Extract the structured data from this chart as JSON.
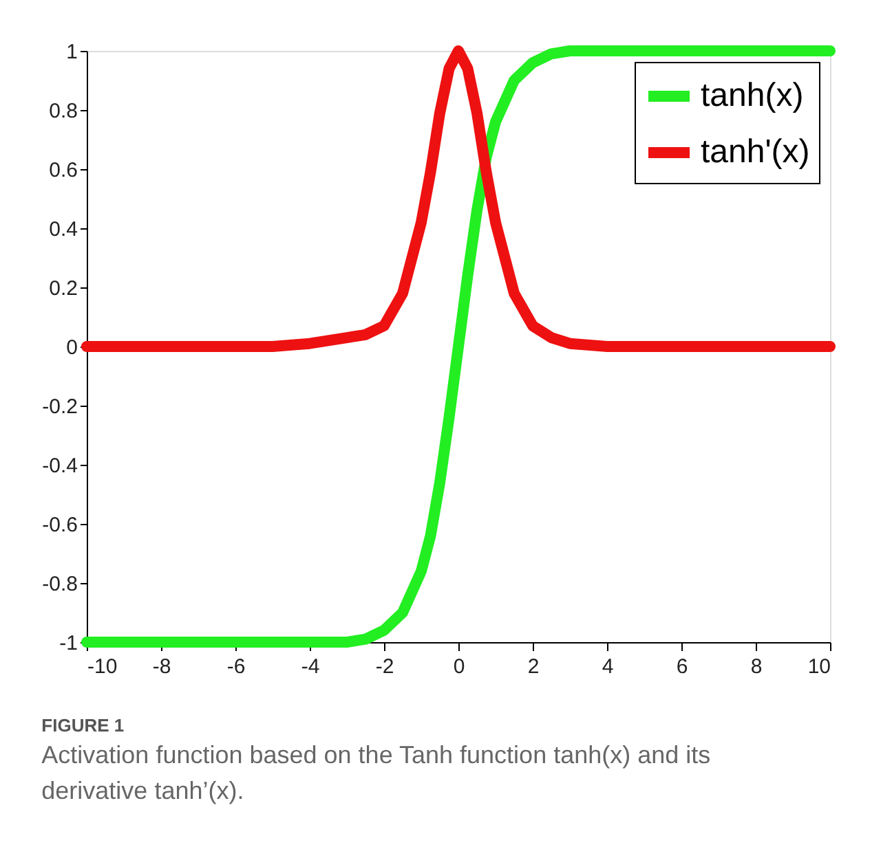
{
  "chart_data": {
    "type": "line",
    "x": [
      -10,
      -8,
      -6,
      -5,
      -4,
      -3,
      -2.5,
      -2,
      -1.5,
      -1,
      -0.75,
      -0.5,
      -0.25,
      0,
      0.25,
      0.5,
      0.75,
      1,
      1.5,
      2,
      2.5,
      3,
      4,
      5,
      6,
      8,
      10
    ],
    "series": [
      {
        "name": "tanh(x)",
        "color": "#22ee22",
        "values": [
          -1,
          -1,
          -1,
          -1,
          -1,
          -1,
          -0.99,
          -0.96,
          -0.9,
          -0.76,
          -0.64,
          -0.46,
          -0.24,
          0,
          0.24,
          0.46,
          0.64,
          0.76,
          0.9,
          0.96,
          0.99,
          1,
          1,
          1,
          1,
          1,
          1
        ]
      },
      {
        "name": "tanh'(x)",
        "color": "#ee1111",
        "values": [
          0,
          0,
          0,
          0,
          0.01,
          0.03,
          0.04,
          0.07,
          0.18,
          0.42,
          0.59,
          0.79,
          0.94,
          1,
          0.94,
          0.79,
          0.59,
          0.42,
          0.18,
          0.07,
          0.03,
          0.01,
          0,
          0,
          0,
          0,
          0
        ]
      }
    ],
    "xlim": [
      -10,
      10
    ],
    "xticks": [
      -10,
      -8,
      -6,
      -4,
      -2,
      0,
      2,
      4,
      6,
      8,
      10
    ],
    "ylim": [
      -1,
      1
    ],
    "yticks": [
      -1,
      -0.8,
      -0.6,
      -0.4,
      -0.2,
      0,
      0.2,
      0.4,
      0.6,
      0.8,
      1
    ],
    "legend": "top right",
    "grid": false,
    "marker": "none",
    "line_style": "solid",
    "annotations": [
      "FIGURE 1",
      "Activation function based on the Tanh function tanh(x) and its derivative tanh’(x)."
    ]
  }
}
